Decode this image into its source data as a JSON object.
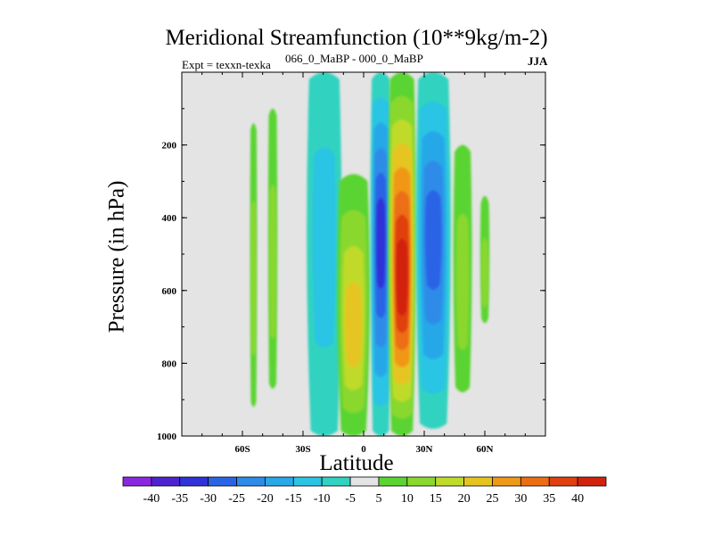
{
  "chart_data": {
    "type": "heatmap",
    "title": "Meridional Streamfunction (10**9kg/m-2)",
    "subtitle": "066_0_MaBP - 000_0_MaBP",
    "left_label": "Expt = texxn-texka",
    "right_label": "JJA",
    "xlabel": "Latitude",
    "ylabel": "Pressure (in hPa)",
    "xlim": [
      -90,
      90
    ],
    "ylim": [
      1000,
      0
    ],
    "x_ticks": [
      {
        "value": -60,
        "label": "60S"
      },
      {
        "value": -30,
        "label": "30S"
      },
      {
        "value": 0,
        "label": "0"
      },
      {
        "value": 30,
        "label": "30N"
      },
      {
        "value": 60,
        "label": "60N"
      }
    ],
    "y_ticks": [
      {
        "value": 200,
        "label": "200"
      },
      {
        "value": 400,
        "label": "400"
      },
      {
        "value": 600,
        "label": "600"
      },
      {
        "value": 800,
        "label": "800"
      },
      {
        "value": 1000,
        "label": "1000"
      }
    ],
    "levels": [
      -40,
      -35,
      -30,
      -25,
      -20,
      -15,
      -10,
      -5,
      5,
      10,
      15,
      20,
      25,
      30,
      35,
      40
    ],
    "colors": [
      "#8a28e0",
      "#4f22cf",
      "#2f32d8",
      "#2a64e6",
      "#2d8ce8",
      "#28a8e8",
      "#2bc4e4",
      "#30d2c0",
      "#e4e4e4",
      "#5ad432",
      "#8ad82e",
      "#c0da2a",
      "#e6c420",
      "#f09818",
      "#ec6e14",
      "#e0400e",
      "#d2220c"
    ],
    "background_color": "#e4e4e4",
    "features": [
      {
        "type": "positive",
        "level": 10,
        "lat_min": -56,
        "lat_max": -53,
        "p_top": 140,
        "p_bottom": 920,
        "label": "weak positive band near 55S"
      },
      {
        "type": "positive",
        "level": 10,
        "lat_min": -47,
        "lat_max": -43,
        "p_top": 100,
        "p_bottom": 870,
        "label": "weak positive band near 45S"
      },
      {
        "type": "negative",
        "level": -10,
        "lat_min": -27,
        "lat_max": -12,
        "p_top": 0,
        "p_bottom": 1000,
        "label": "weak negative band 25S-15S"
      },
      {
        "type": "positive",
        "level": 20,
        "lat_min": -12,
        "lat_max": 2,
        "p_top": 280,
        "p_bottom": 1000,
        "peak": 22,
        "label": "southern positive cell near 5S"
      },
      {
        "type": "negative",
        "level": -30,
        "lat_min": 4,
        "lat_max": 13,
        "p_top": 0,
        "p_bottom": 1000,
        "peak": -32,
        "label": "negative cell near 8N"
      },
      {
        "type": "positive",
        "level": 40,
        "lat_min": 13,
        "lat_max": 25,
        "p_top": 0,
        "p_bottom": 1000,
        "peak": 42,
        "label": "strong positive cell near 20N"
      },
      {
        "type": "negative",
        "level": -25,
        "lat_min": 27,
        "lat_max": 42,
        "p_top": 0,
        "p_bottom": 980,
        "peak": -27,
        "label": "negative cell near 33N"
      },
      {
        "type": "positive",
        "level": 10,
        "lat_min": 45,
        "lat_max": 53,
        "p_top": 200,
        "p_bottom": 880,
        "label": "weak positive band near 50N"
      },
      {
        "type": "positive",
        "level": 10,
        "lat_min": 58,
        "lat_max": 62,
        "p_top": 340,
        "p_bottom": 690,
        "label": "weak positive band near 60N"
      }
    ]
  }
}
